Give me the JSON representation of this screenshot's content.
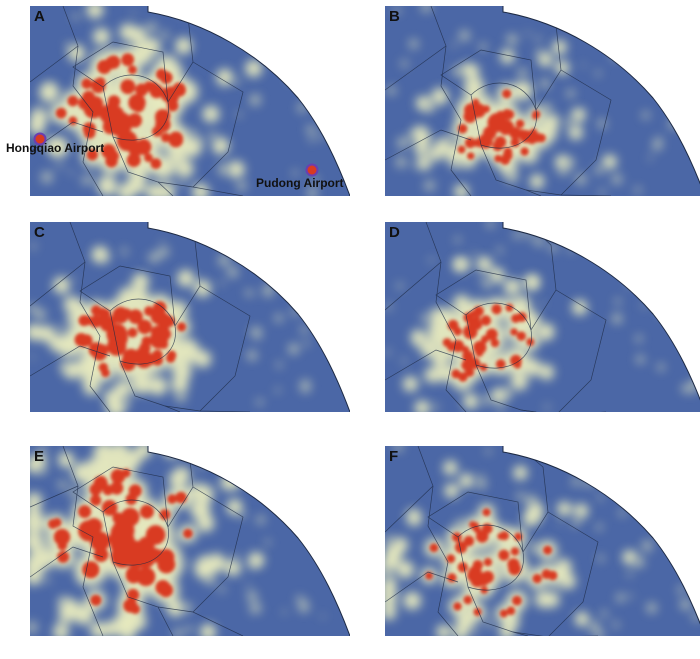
{
  "colors": {
    "sea": "#4f6fab",
    "land": "#4b67a6",
    "glow": "#f2f3c0",
    "core": "#d93a22",
    "boundary": "#1d2a44",
    "airport_marker": "#6a3fb0"
  },
  "panels": [
    {
      "label": "A",
      "hotspot_count": 95
    },
    {
      "label": "B",
      "hotspot_count": 70
    },
    {
      "label": "C",
      "hotspot_count": 85
    },
    {
      "label": "D",
      "hotspot_count": 65
    },
    {
      "label": "E",
      "hotspot_count": 110
    },
    {
      "label": "F",
      "hotspot_count": 75
    }
  ],
  "places": {
    "hongqiao": "Hongqiao Airport",
    "pudong": "Pudong Airport"
  }
}
